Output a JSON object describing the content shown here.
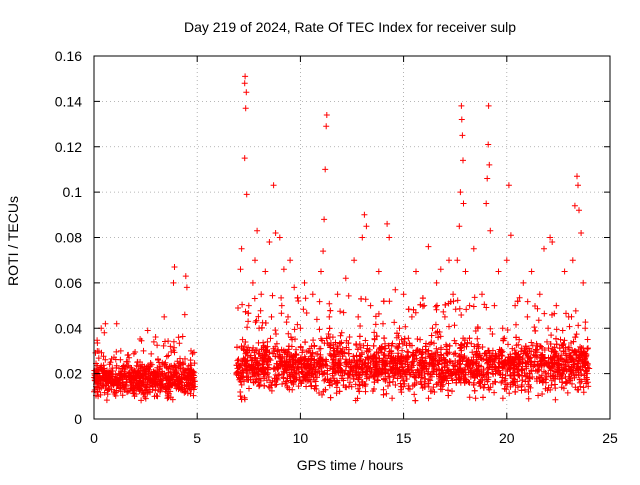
{
  "chart_data": {
    "type": "scatter",
    "title": "Day 219 of 2024, Rate Of TEC Index for receiver sulp",
    "xlabel": "GPS time / hours",
    "ylabel": "ROTI / TECUs",
    "xlim": [
      0,
      25
    ],
    "ylim": [
      0,
      0.16
    ],
    "xticks": [
      0,
      5,
      10,
      15,
      20,
      25
    ],
    "xtick_labels": [
      "0",
      "5",
      "10",
      "15",
      "20",
      "25"
    ],
    "yticks": [
      0,
      0.02,
      0.04,
      0.06,
      0.08,
      0.1,
      0.12,
      0.14,
      0.16
    ],
    "ytick_labels": [
      "0",
      "0.02",
      "0.04",
      "0.06",
      "0.08",
      "0.1",
      "0.12",
      "0.14",
      "0.16"
    ],
    "grid": true,
    "marker": "+",
    "series": [
      {
        "name": "ROTI",
        "color": "#ff0000",
        "points": [
          [
            0.0,
            0.012
          ],
          [
            0.1,
            0.018
          ],
          [
            0.2,
            0.01
          ],
          [
            0.3,
            0.022
          ],
          [
            0.35,
            0.04
          ],
          [
            0.4,
            0.015
          ],
          [
            0.5,
            0.038
          ],
          [
            0.55,
            0.042
          ],
          [
            0.6,
            0.02
          ],
          [
            0.7,
            0.013
          ],
          [
            0.8,
            0.025
          ],
          [
            0.9,
            0.017
          ],
          [
            1.0,
            0.011
          ],
          [
            1.1,
            0.042
          ],
          [
            1.2,
            0.02
          ],
          [
            1.3,
            0.03
          ],
          [
            1.4,
            0.016
          ],
          [
            1.5,
            0.022
          ],
          [
            1.6,
            0.012
          ],
          [
            1.7,
            0.027
          ],
          [
            1.8,
            0.018
          ],
          [
            1.9,
            0.014
          ],
          [
            2.0,
            0.021
          ],
          [
            2.1,
            0.025
          ],
          [
            2.2,
            0.013
          ],
          [
            2.3,
            0.019
          ],
          [
            2.4,
            0.03
          ],
          [
            2.5,
            0.02
          ],
          [
            2.6,
            0.039
          ],
          [
            2.7,
            0.015
          ],
          [
            2.8,
            0.024
          ],
          [
            2.9,
            0.034
          ],
          [
            3.0,
            0.018
          ],
          [
            3.1,
            0.026
          ],
          [
            3.2,
            0.012
          ],
          [
            3.3,
            0.021
          ],
          [
            3.4,
            0.045
          ],
          [
            3.5,
            0.017
          ],
          [
            3.6,
            0.028
          ],
          [
            3.7,
            0.032
          ],
          [
            3.8,
            0.015
          ],
          [
            3.85,
            0.06
          ],
          [
            3.9,
            0.067
          ],
          [
            4.0,
            0.02
          ],
          [
            4.1,
            0.036
          ],
          [
            4.2,
            0.013
          ],
          [
            4.3,
            0.025
          ],
          [
            4.4,
            0.046
          ],
          [
            4.45,
            0.063
          ],
          [
            4.5,
            0.058
          ],
          [
            4.6,
            0.019
          ],
          [
            4.7,
            0.03
          ],
          [
            4.8,
            0.014
          ],
          [
            7.0,
            0.02
          ],
          [
            7.1,
            0.066
          ],
          [
            7.15,
            0.075
          ],
          [
            7.2,
            0.035
          ],
          [
            7.3,
            0.148
          ],
          [
            7.32,
            0.151
          ],
          [
            7.35,
            0.137
          ],
          [
            7.38,
            0.144
          ],
          [
            7.3,
            0.115
          ],
          [
            7.4,
            0.099
          ],
          [
            7.5,
            0.05
          ],
          [
            7.6,
            0.028
          ],
          [
            7.7,
            0.06
          ],
          [
            7.8,
            0.07
          ],
          [
            7.9,
            0.083
          ],
          [
            8.0,
            0.04
          ],
          [
            8.1,
            0.055
          ],
          [
            8.2,
            0.022
          ],
          [
            8.3,
            0.065
          ],
          [
            8.4,
            0.034
          ],
          [
            8.5,
            0.078
          ],
          [
            8.6,
            0.045
          ],
          [
            8.7,
            0.103
          ],
          [
            8.8,
            0.082
          ],
          [
            8.9,
            0.03
          ],
          [
            9.0,
            0.08
          ],
          [
            9.1,
            0.05
          ],
          [
            9.2,
            0.066
          ],
          [
            9.3,
            0.025
          ],
          [
            9.4,
            0.045
          ],
          [
            9.5,
            0.07
          ],
          [
            9.6,
            0.035
          ],
          [
            9.7,
            0.058
          ],
          [
            9.8,
            0.02
          ],
          [
            9.9,
            0.052
          ],
          [
            10.0,
            0.04
          ],
          [
            10.2,
            0.06
          ],
          [
            10.4,
            0.03
          ],
          [
            10.6,
            0.055
          ],
          [
            10.8,
            0.025
          ],
          [
            11.0,
            0.065
          ],
          [
            11.1,
            0.074
          ],
          [
            11.15,
            0.088
          ],
          [
            11.2,
            0.11
          ],
          [
            11.25,
            0.129
          ],
          [
            11.28,
            0.134
          ],
          [
            11.4,
            0.045
          ],
          [
            11.6,
            0.03
          ],
          [
            11.8,
            0.055
          ],
          [
            12.0,
            0.038
          ],
          [
            12.2,
            0.062
          ],
          [
            12.4,
            0.025
          ],
          [
            12.6,
            0.07
          ],
          [
            12.8,
            0.045
          ],
          [
            13.0,
            0.08
          ],
          [
            13.1,
            0.09
          ],
          [
            13.2,
            0.085
          ],
          [
            13.4,
            0.05
          ],
          [
            13.6,
            0.035
          ],
          [
            13.8,
            0.065
          ],
          [
            14.0,
            0.042
          ],
          [
            14.2,
            0.086
          ],
          [
            14.3,
            0.08
          ],
          [
            14.4,
            0.03
          ],
          [
            14.6,
            0.057
          ],
          [
            14.8,
            0.04
          ],
          [
            15.0,
            0.055
          ],
          [
            15.2,
            0.025
          ],
          [
            15.4,
            0.045
          ],
          [
            15.6,
            0.065
          ],
          [
            15.8,
            0.035
          ],
          [
            16.0,
            0.05
          ],
          [
            16.2,
            0.076
          ],
          [
            16.4,
            0.04
          ],
          [
            16.6,
            0.06
          ],
          [
            16.8,
            0.066
          ],
          [
            17.0,
            0.045
          ],
          [
            17.2,
            0.07
          ],
          [
            17.4,
            0.055
          ],
          [
            17.6,
            0.07
          ],
          [
            17.7,
            0.085
          ],
          [
            17.75,
            0.1
          ],
          [
            17.8,
            0.138
          ],
          [
            17.82,
            0.132
          ],
          [
            17.85,
            0.125
          ],
          [
            17.88,
            0.114
          ],
          [
            17.9,
            0.095
          ],
          [
            18.0,
            0.065
          ],
          [
            18.2,
            0.05
          ],
          [
            18.4,
            0.075
          ],
          [
            18.6,
            0.04
          ],
          [
            18.8,
            0.055
          ],
          [
            19.0,
            0.095
          ],
          [
            19.05,
            0.106
          ],
          [
            19.1,
            0.121
          ],
          [
            19.12,
            0.138
          ],
          [
            19.15,
            0.112
          ],
          [
            19.2,
            0.083
          ],
          [
            19.4,
            0.05
          ],
          [
            19.6,
            0.065
          ],
          [
            19.8,
            0.04
          ],
          [
            20.0,
            0.07
          ],
          [
            20.1,
            0.103
          ],
          [
            20.2,
            0.081
          ],
          [
            20.4,
            0.05
          ],
          [
            20.6,
            0.035
          ],
          [
            20.8,
            0.06
          ],
          [
            21.0,
            0.045
          ],
          [
            21.2,
            0.065
          ],
          [
            21.4,
            0.03
          ],
          [
            21.6,
            0.055
          ],
          [
            21.8,
            0.075
          ],
          [
            22.0,
            0.04
          ],
          [
            22.1,
            0.08
          ],
          [
            22.2,
            0.078
          ],
          [
            22.4,
            0.05
          ],
          [
            22.6,
            0.035
          ],
          [
            22.8,
            0.065
          ],
          [
            23.0,
            0.045
          ],
          [
            23.2,
            0.07
          ],
          [
            23.3,
            0.094
          ],
          [
            23.4,
            0.107
          ],
          [
            23.45,
            0.103
          ],
          [
            23.5,
            0.092
          ],
          [
            23.6,
            0.082
          ],
          [
            23.7,
            0.06
          ],
          [
            23.8,
            0.04
          ],
          [
            23.9,
            0.02
          ]
        ]
      }
    ],
    "dense_bands": [
      {
        "x_from": 0.0,
        "x_to": 4.9,
        "y_low": 0.008,
        "y_high": 0.024,
        "count": 700
      },
      {
        "x_from": 6.9,
        "x_to": 24.0,
        "y_low": 0.008,
        "y_high": 0.034,
        "count": 2600
      }
    ]
  }
}
